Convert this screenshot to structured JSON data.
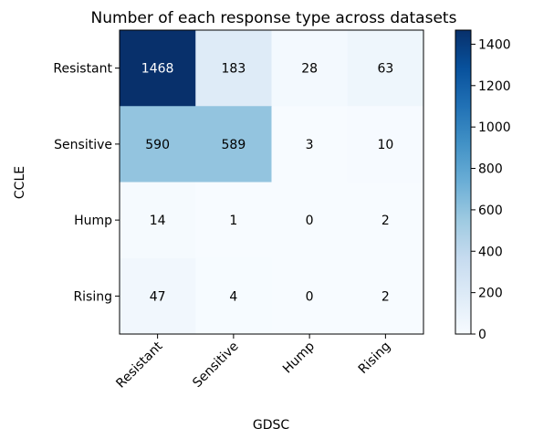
{
  "chart_data": {
    "type": "heatmap",
    "title": "Number of each response type across datasets",
    "xlabel": "GDSC",
    "ylabel": "CCLE",
    "x_categories": [
      "Resistant",
      "Sensitive",
      "Hump",
      "Rising"
    ],
    "y_categories": [
      "Resistant",
      "Sensitive",
      "Hump",
      "Rising"
    ],
    "matrix": [
      [
        1468,
        183,
        28,
        63
      ],
      [
        590,
        589,
        3,
        10
      ],
      [
        14,
        1,
        0,
        2
      ],
      [
        47,
        4,
        0,
        2
      ]
    ],
    "colormap": "Blues",
    "colorbar": {
      "min": 0,
      "max": 1468,
      "ticks": [
        "0",
        "200",
        "400",
        "600",
        "800",
        "1000",
        "1200",
        "1400"
      ]
    },
    "colors": {
      "low": "#f7fbff",
      "high": "#08306b",
      "text_dark": "#000000",
      "text_light": "#ffffff"
    }
  }
}
